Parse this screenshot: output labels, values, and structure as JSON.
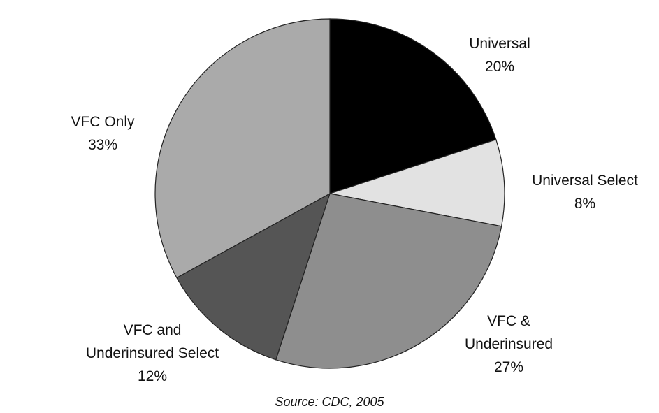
{
  "chart_data": {
    "type": "pie",
    "categories": [
      "Universal",
      "Universal Select",
      "VFC & Underinsured",
      "VFC and Underinsured Select",
      "VFC Only"
    ],
    "values": [
      20,
      8,
      27,
      12,
      33
    ],
    "value_labels": [
      "20%",
      "8%",
      "27%",
      "12%",
      "33%"
    ],
    "colors": [
      "#000000",
      "#e2e2e2",
      "#8e8e8e",
      "#555555",
      "#aaaaaa"
    ],
    "source": "Source: CDC, 2005"
  }
}
